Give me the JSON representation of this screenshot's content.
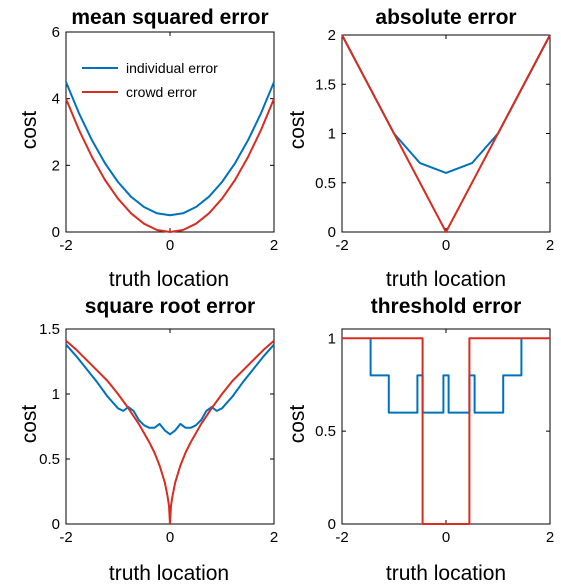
{
  "colors": {
    "individual": "#0072BD",
    "crowd": "#D62D20",
    "axis": "#000000",
    "background": "#ffffff"
  },
  "chart_data": [
    {
      "id": "mse",
      "type": "line",
      "title": "mean squared error",
      "xlabel": "truth location",
      "ylabel": "cost",
      "xlim": [
        -2,
        2
      ],
      "ylim": [
        0,
        6
      ],
      "xticks": [
        -2,
        0,
        2
      ],
      "yticks": [
        0,
        2,
        4,
        6
      ],
      "ytick_labels": [
        "0",
        "2",
        "4",
        "6"
      ],
      "grid": false,
      "legend": {
        "placement": "top-left",
        "entries": [
          "individual error",
          "crowd error"
        ]
      },
      "series": [
        {
          "name": "individual error",
          "color_key": "individual",
          "x": [
            -2,
            -1.75,
            -1.5,
            -1.25,
            -1,
            -0.75,
            -0.5,
            -0.25,
            0,
            0.25,
            0.5,
            0.75,
            1,
            1.25,
            1.5,
            1.75,
            2
          ],
          "y": [
            4.5,
            3.56,
            2.75,
            2.06,
            1.5,
            1.06,
            0.75,
            0.56,
            0.5,
            0.56,
            0.75,
            1.06,
            1.5,
            2.06,
            2.75,
            3.56,
            4.5
          ]
        },
        {
          "name": "crowd error",
          "color_key": "crowd",
          "x": [
            -2,
            -1.75,
            -1.5,
            -1.25,
            -1,
            -0.75,
            -0.5,
            -0.25,
            0,
            0.25,
            0.5,
            0.75,
            1,
            1.25,
            1.5,
            1.75,
            2
          ],
          "y": [
            4.0,
            3.06,
            2.25,
            1.56,
            1.0,
            0.56,
            0.25,
            0.06,
            0.0,
            0.06,
            0.25,
            0.56,
            1.0,
            1.56,
            2.25,
            3.06,
            4.0
          ]
        }
      ]
    },
    {
      "id": "abs",
      "type": "line",
      "title": "absolute error",
      "xlabel": "truth location",
      "ylabel": "cost",
      "xlim": [
        -2,
        2
      ],
      "ylim": [
        0,
        2
      ],
      "xticks": [
        -2,
        0,
        2
      ],
      "yticks": [
        0,
        0.5,
        1,
        1.5,
        2
      ],
      "ytick_labels": [
        "0",
        "0.5",
        "1",
        "1.5",
        "2"
      ],
      "grid": false,
      "series": [
        {
          "name": "individual error",
          "color_key": "individual",
          "x": [
            -2,
            -1,
            -0.5,
            0,
            0.5,
            1,
            2
          ],
          "y": [
            2,
            1,
            0.7,
            0.6,
            0.7,
            1,
            2
          ]
        },
        {
          "name": "crowd error",
          "color_key": "crowd",
          "x": [
            -2,
            0,
            2
          ],
          "y": [
            2,
            0,
            2
          ]
        }
      ]
    },
    {
      "id": "sqrt",
      "type": "line",
      "title": "square root error",
      "xlabel": "truth location",
      "ylabel": "cost",
      "xlim": [
        -2,
        2
      ],
      "ylim": [
        0,
        1.5
      ],
      "xticks": [
        -2,
        0,
        2
      ],
      "yticks": [
        0,
        0.5,
        1,
        1.5
      ],
      "ytick_labels": [
        "0",
        "0.5",
        "1",
        "1.5"
      ],
      "grid": false,
      "series": [
        {
          "name": "individual error",
          "color_key": "individual",
          "x": [
            -2,
            -1.8,
            -1.6,
            -1.4,
            -1.2,
            -1.0,
            -0.9,
            -0.8,
            -0.7,
            -0.6,
            -0.5,
            -0.4,
            -0.3,
            -0.2,
            -0.1,
            0,
            0.1,
            0.2,
            0.3,
            0.4,
            0.5,
            0.6,
            0.7,
            0.8,
            0.9,
            1.0,
            1.2,
            1.4,
            1.6,
            1.8,
            2
          ],
          "y": [
            1.38,
            1.29,
            1.19,
            1.09,
            0.98,
            0.89,
            0.87,
            0.9,
            0.87,
            0.8,
            0.76,
            0.74,
            0.74,
            0.77,
            0.72,
            0.69,
            0.72,
            0.77,
            0.74,
            0.74,
            0.76,
            0.8,
            0.87,
            0.9,
            0.87,
            0.89,
            0.98,
            1.09,
            1.19,
            1.29,
            1.38
          ]
        },
        {
          "name": "crowd error",
          "color_key": "crowd",
          "x": [
            -2,
            -1.8,
            -1.6,
            -1.4,
            -1.2,
            -1.0,
            -0.8,
            -0.6,
            -0.4,
            -0.3,
            -0.2,
            -0.1,
            -0.05,
            -0.02,
            0,
            0.02,
            0.05,
            0.1,
            0.2,
            0.3,
            0.4,
            0.6,
            0.8,
            1.0,
            1.2,
            1.4,
            1.6,
            1.8,
            2
          ],
          "y": [
            1.41,
            1.34,
            1.26,
            1.18,
            1.1,
            1.0,
            0.89,
            0.77,
            0.63,
            0.55,
            0.45,
            0.32,
            0.22,
            0.14,
            0,
            0.14,
            0.22,
            0.32,
            0.45,
            0.55,
            0.63,
            0.77,
            0.89,
            1.0,
            1.1,
            1.18,
            1.26,
            1.34,
            1.41
          ]
        }
      ]
    },
    {
      "id": "threshold",
      "type": "line",
      "title": "threshold error",
      "xlabel": "truth location",
      "ylabel": "cost",
      "xlim": [
        -2,
        2
      ],
      "ylim": [
        0,
        1.05
      ],
      "xticks": [
        -2,
        0,
        2
      ],
      "yticks": [
        0,
        0.5,
        1
      ],
      "ytick_labels": [
        "0",
        "0.5",
        "1"
      ],
      "grid": false,
      "series": [
        {
          "name": "individual error",
          "color_key": "individual",
          "x": [
            -1.45,
            -1.45,
            -1.1,
            -1.1,
            -0.95,
            -0.95,
            -0.55,
            -0.55,
            -0.45,
            -0.45,
            -0.05,
            -0.05,
            0.05,
            0.05,
            0.45,
            0.45,
            0.55,
            0.55,
            0.95,
            0.95,
            1.1,
            1.1,
            1.45,
            1.45
          ],
          "y": [
            1.0,
            0.8,
            0.8,
            0.6,
            0.6,
            0.6,
            0.6,
            0.8,
            0.8,
            0.6,
            0.6,
            0.8,
            0.8,
            0.6,
            0.6,
            0.8,
            0.8,
            0.6,
            0.6,
            0.6,
            0.6,
            0.8,
            0.8,
            1.0
          ]
        },
        {
          "name": "crowd error",
          "color_key": "crowd",
          "x": [
            -2,
            -0.45,
            -0.45,
            0.45,
            0.45,
            2
          ],
          "y": [
            1.0,
            1.0,
            0.0,
            0.0,
            1.0,
            1.0
          ]
        }
      ]
    }
  ]
}
